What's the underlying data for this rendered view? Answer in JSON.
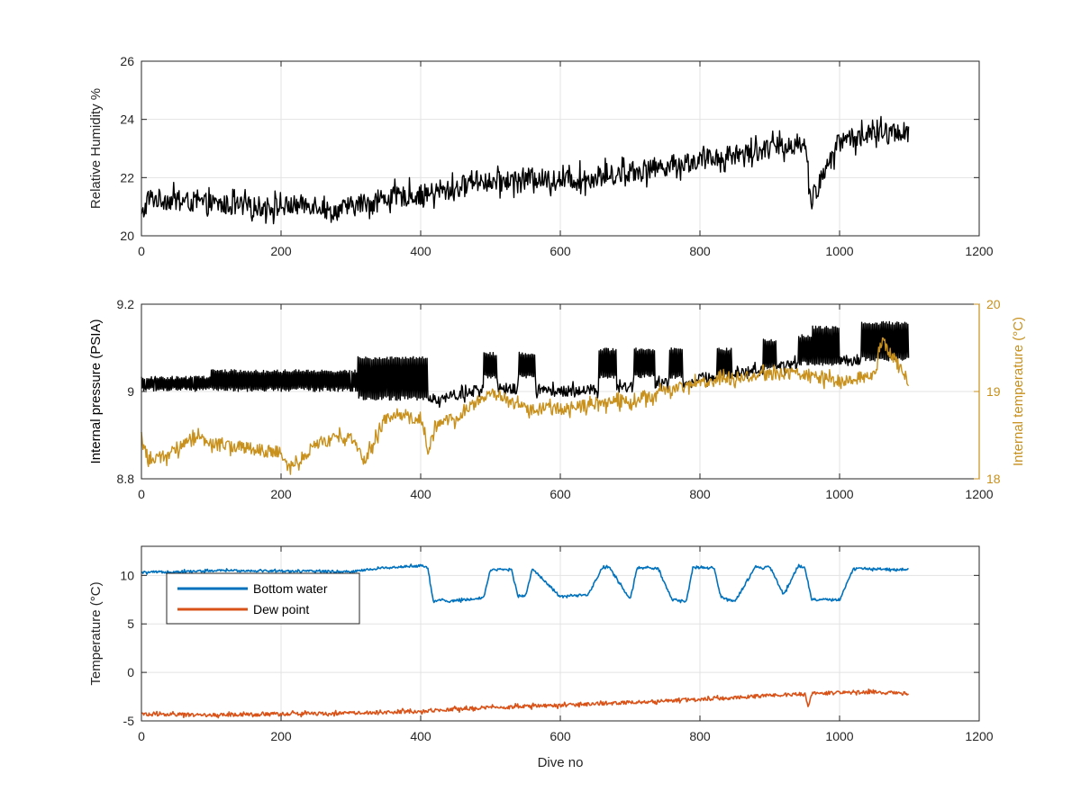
{
  "figure": {
    "background": "#ffffff",
    "xlabel": "Dive no"
  },
  "chart_data": [
    {
      "type": "line",
      "id": "humidity",
      "ylabel": "Relative Humidity %",
      "xlim": [
        0,
        1200
      ],
      "ylim": [
        20,
        26
      ],
      "xticks": [
        0,
        200,
        400,
        600,
        800,
        1000,
        1200
      ],
      "yticks": [
        20,
        22,
        24,
        26
      ],
      "grid": true,
      "series": [
        {
          "color": "#000000",
          "noise": 0.35,
          "x": [
            0,
            10,
            50,
            100,
            150,
            200,
            250,
            270,
            300,
            350,
            400,
            450,
            480,
            500,
            550,
            600,
            650,
            700,
            750,
            800,
            850,
            900,
            950,
            960,
            1000,
            1050,
            1100
          ],
          "y": [
            20.6,
            21.3,
            21.2,
            21.1,
            21.0,
            21.0,
            21.1,
            20.8,
            21.0,
            21.3,
            21.4,
            21.6,
            22.0,
            21.8,
            22.0,
            21.9,
            22.0,
            22.2,
            22.4,
            22.6,
            22.8,
            23.0,
            23.2,
            21.2,
            23.3,
            23.5,
            23.6
          ]
        }
      ]
    },
    {
      "type": "line",
      "id": "pressure",
      "ylabel": "Internal pressure (PSIA)",
      "y2label": "Internal temperature (°C)",
      "y2color": "#c8901c",
      "xlim": [
        0,
        1200
      ],
      "ylim": [
        8.8,
        9.2
      ],
      "y2lim": [
        18,
        20
      ],
      "xticks": [
        0,
        200,
        400,
        600,
        800,
        1000,
        1200
      ],
      "yticks": [
        8.8,
        9,
        9.2
      ],
      "y2ticks": [
        18,
        19,
        20
      ],
      "grid": true,
      "series": [
        {
          "axis": "left",
          "color": "#000000",
          "noise": 0.012,
          "bursts": [
            [
              0,
              100,
              9.0,
              9.035
            ],
            [
              100,
              310,
              9.0,
              9.05
            ],
            [
              310,
              410,
              8.98,
              9.08
            ],
            [
              490,
              510,
              9.03,
              9.09
            ],
            [
              540,
              565,
              9.03,
              9.09
            ],
            [
              655,
              680,
              9.03,
              9.1
            ],
            [
              705,
              735,
              9.03,
              9.1
            ],
            [
              755,
              775,
              9.03,
              9.1
            ],
            [
              825,
              845,
              9.03,
              9.1
            ],
            [
              890,
              910,
              9.05,
              9.12
            ],
            [
              940,
              960,
              9.06,
              9.13
            ],
            [
              960,
              1000,
              9.06,
              9.15
            ],
            [
              1030,
              1100,
              9.07,
              9.16
            ]
          ],
          "x": [
            0,
            10,
            400,
            410,
            420,
            500,
            600,
            700,
            800,
            900,
            950,
            956,
            960,
            1000,
            1100
          ],
          "y": [
            8.93,
            9.0,
            9.0,
            8.99,
            8.98,
            9.01,
            9.0,
            9.01,
            9.03,
            9.05,
            9.07,
            8.91,
            9.07,
            9.07,
            9.08
          ]
        },
        {
          "axis": "right",
          "color": "#c8901c",
          "noise": 0.07,
          "x": [
            0,
            10,
            50,
            70,
            100,
            200,
            210,
            250,
            300,
            320,
            350,
            400,
            410,
            420,
            450,
            500,
            550,
            600,
            700,
            800,
            900,
            950,
            1000,
            1050,
            1060,
            1100
          ],
          "y": [
            18.5,
            18.2,
            18.3,
            18.5,
            18.4,
            18.3,
            18.1,
            18.4,
            18.5,
            18.2,
            18.7,
            18.7,
            18.3,
            18.6,
            18.7,
            19.0,
            18.8,
            18.8,
            18.9,
            19.1,
            19.2,
            19.2,
            19.1,
            19.2,
            19.6,
            19.1
          ]
        }
      ]
    },
    {
      "type": "line",
      "id": "temperature",
      "ylabel": "Temperature (°C)",
      "xlim": [
        0,
        1200
      ],
      "ylim": [
        -5,
        13
      ],
      "xticks": [
        0,
        200,
        400,
        600,
        800,
        1000,
        1200
      ],
      "yticks": [
        -5,
        0,
        5,
        10
      ],
      "grid": true,
      "legend": {
        "position": "top-left"
      },
      "series": [
        {
          "name": "Bottom water",
          "color": "#0072bd",
          "noise": 0.12,
          "x": [
            0,
            120,
            300,
            350,
            400,
            410,
            418,
            430,
            440,
            490,
            500,
            530,
            540,
            550,
            560,
            600,
            640,
            660,
            670,
            700,
            710,
            740,
            760,
            780,
            790,
            820,
            830,
            850,
            880,
            890,
            900,
            920,
            940,
            950,
            960,
            1000,
            1020,
            1100
          ],
          "y": [
            10.3,
            10.5,
            10.4,
            10.8,
            11.0,
            10.8,
            7.3,
            7.5,
            7.3,
            7.7,
            10.6,
            10.6,
            7.8,
            7.9,
            10.7,
            7.8,
            8.0,
            10.8,
            10.8,
            7.5,
            10.8,
            10.7,
            7.5,
            7.3,
            10.8,
            10.8,
            7.8,
            7.3,
            10.9,
            10.7,
            10.9,
            8.0,
            10.9,
            10.9,
            7.5,
            7.5,
            10.7,
            10.6
          ]
        },
        {
          "name": "Dew point",
          "color": "#d95319",
          "noise": 0.18,
          "x": [
            0,
            100,
            200,
            300,
            400,
            500,
            600,
            700,
            800,
            900,
            950,
            955,
            960,
            1000,
            1050,
            1100
          ],
          "y": [
            -4.3,
            -4.4,
            -4.3,
            -4.2,
            -4.0,
            -3.6,
            -3.4,
            -3.1,
            -2.8,
            -2.4,
            -2.2,
            -3.4,
            -2.2,
            -2.1,
            -2.0,
            -2.2
          ]
        }
      ]
    }
  ]
}
